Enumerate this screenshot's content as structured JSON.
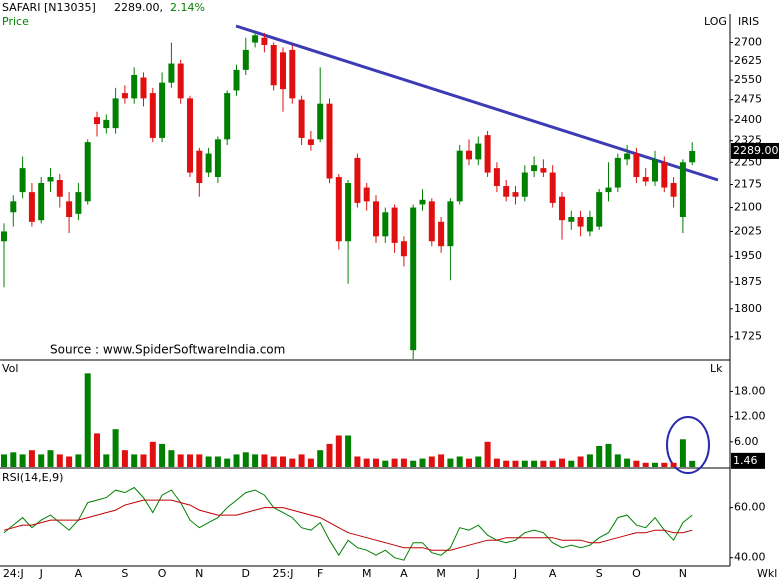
{
  "header": {
    "symbol": "SAFARI [N13035]",
    "last": "2289.00,",
    "change": "2.14%"
  },
  "x_axis_label": "Wkl",
  "chart_data": [
    {
      "type": "candlestick",
      "title": "Price",
      "scale": "log",
      "scale_label": "LOG",
      "indicator_label": "IRIS",
      "annotation": "Source : www.SpiderSoftwareIndia.com",
      "up_color": "#008000",
      "down_color": "#e01010",
      "last_label": "2289.00",
      "categories": [
        null,
        "24:J",
        null,
        null,
        "J",
        null,
        null,
        null,
        "A",
        null,
        null,
        null,
        null,
        "S",
        null,
        null,
        null,
        "O",
        null,
        null,
        null,
        "N",
        null,
        null,
        null,
        null,
        "D",
        null,
        null,
        null,
        "25:J",
        null,
        null,
        null,
        "F",
        null,
        null,
        null,
        null,
        "M",
        null,
        null,
        null,
        "A",
        null,
        null,
        null,
        "M",
        null,
        null,
        null,
        "J",
        null,
        null,
        null,
        "J",
        null,
        null,
        null,
        "A",
        null,
        null,
        null,
        null,
        "S",
        null,
        null,
        null,
        "O",
        null,
        null,
        null,
        null,
        "N",
        null
      ],
      "open": [
        1995,
        2085,
        2150,
        2150,
        2060,
        2185,
        2190,
        2120,
        2080,
        2120,
        2410,
        2370,
        2370,
        2500,
        2480,
        2560,
        2500,
        2335,
        2540,
        2615,
        2480,
        2290,
        2215,
        2200,
        2330,
        2510,
        2590,
        2700,
        2720,
        2690,
        2660,
        2670,
        2475,
        2330,
        2330,
        2460,
        2200,
        1995,
        2265,
        2165,
        2120,
        2010,
        2100,
        1995,
        1690,
        2110,
        2120,
        2055,
        1980,
        2120,
        2290,
        2260,
        2345,
        2230,
        2170,
        2150,
        2135,
        2220,
        2230,
        2215,
        2135,
        2055,
        2070,
        2025,
        2040,
        2150,
        2165,
        2260,
        2280,
        2200,
        2185,
        2250,
        2180,
        2070,
        2250
      ],
      "high": [
        2050,
        2140,
        2270,
        2180,
        2200,
        2230,
        2210,
        2150,
        2180,
        2330,
        2430,
        2420,
        2520,
        2530,
        2600,
        2580,
        2520,
        2580,
        2700,
        2630,
        2490,
        2300,
        2300,
        2340,
        2510,
        2610,
        2720,
        2750,
        2740,
        2700,
        2680,
        2690,
        2490,
        2360,
        2600,
        2480,
        2210,
        2190,
        2280,
        2180,
        2140,
        2100,
        2110,
        2010,
        2110,
        2160,
        2130,
        2070,
        2130,
        2310,
        2330,
        2340,
        2360,
        2250,
        2190,
        2170,
        2240,
        2270,
        2260,
        2240,
        2150,
        2090,
        2090,
        2090,
        2160,
        2250,
        2280,
        2310,
        2300,
        2230,
        2290,
        2270,
        2200,
        2260,
        2320
      ],
      "low": [
        1860,
        2040,
        2130,
        2040,
        2050,
        2150,
        2100,
        2020,
        2060,
        2110,
        2340,
        2350,
        2350,
        2460,
        2460,
        2450,
        2320,
        2320,
        2520,
        2460,
        2200,
        2135,
        2200,
        2180,
        2310,
        2490,
        2570,
        2680,
        2660,
        2510,
        2430,
        2460,
        2310,
        2290,
        2320,
        2180,
        1970,
        1870,
        2100,
        2090,
        1990,
        1990,
        1960,
        1920,
        1650,
        2090,
        1980,
        1960,
        1880,
        2110,
        2240,
        2240,
        2200,
        2150,
        2120,
        2110,
        2120,
        2200,
        2200,
        2100,
        2000,
        2030,
        2010,
        2010,
        2030,
        2120,
        2150,
        2240,
        2180,
        2170,
        2170,
        2150,
        2100,
        2020,
        2240
      ],
      "close": [
        2025,
        2120,
        2230,
        2055,
        2180,
        2200,
        2135,
        2070,
        2150,
        2320,
        2385,
        2400,
        2480,
        2480,
        2570,
        2480,
        2335,
        2540,
        2615,
        2480,
        2215,
        2180,
        2280,
        2330,
        2500,
        2590,
        2670,
        2730,
        2690,
        2530,
        2515,
        2480,
        2335,
        2310,
        2460,
        2195,
        1995,
        2180,
        2115,
        2120,
        2010,
        2085,
        1990,
        1950,
        2100,
        2125,
        1995,
        1980,
        2120,
        2290,
        2260,
        2315,
        2215,
        2170,
        2135,
        2135,
        2215,
        2240,
        2215,
        2115,
        2060,
        2070,
        2040,
        2070,
        2150,
        2165,
        2265,
        2280,
        2200,
        2185,
        2260,
        2165,
        2135,
        2250,
        2289
      ],
      "ylim": [
        1670,
        2820
      ],
      "yticks": [
        1725,
        1800,
        1875,
        1950,
        2025,
        2100,
        2175,
        2250,
        2325,
        2400,
        2475,
        2550,
        2625,
        2700
      ]
    },
    {
      "type": "bar",
      "title": "Vol",
      "unit": "Lk",
      "last_label": "1.46",
      "values": [
        3,
        3.5,
        3,
        4,
        3,
        4,
        3,
        2.5,
        3,
        22.3,
        8,
        3,
        9,
        4,
        3,
        3,
        6,
        5.5,
        4,
        3,
        3,
        3,
        2.5,
        2.5,
        2,
        3,
        3.5,
        3,
        3,
        2.5,
        2.5,
        2,
        3,
        2,
        4,
        5.5,
        7.5,
        7.5,
        2.5,
        2,
        2,
        1.5,
        2,
        2,
        1.5,
        2,
        2.5,
        3,
        2,
        2.5,
        2,
        2.5,
        6,
        2,
        1.5,
        1.5,
        1.5,
        1.5,
        1.5,
        1.5,
        2,
        1.5,
        2.5,
        3,
        5,
        5.5,
        3,
        2,
        1.5,
        1,
        1,
        1,
        1,
        6.6,
        1.46
      ],
      "ylim": [
        0,
        25
      ],
      "yticks": [
        {
          "value": 6,
          "label": "6.00"
        },
        {
          "value": 12,
          "label": "12.00"
        },
        {
          "value": 18,
          "label": "18.00"
        }
      ]
    },
    {
      "type": "line",
      "title": "RSI(14,E,9)",
      "series": [
        {
          "color": "#008000",
          "values": [
            50,
            53,
            56,
            52,
            55,
            57,
            54,
            51,
            55,
            62,
            63,
            64,
            67,
            66,
            68,
            64,
            58,
            65,
            67,
            62,
            55,
            52,
            54,
            56,
            60,
            63,
            66,
            67,
            65,
            60,
            58,
            56,
            52,
            51,
            54,
            47,
            41,
            47,
            44,
            43,
            41,
            43,
            40,
            39,
            46,
            46,
            42,
            41,
            44,
            52,
            51,
            53,
            49,
            47,
            46,
            47,
            50,
            51,
            50,
            46,
            44,
            45,
            44,
            45,
            48,
            50,
            56,
            57,
            53,
            52,
            56,
            51,
            47,
            54,
            57
          ]
        },
        {
          "color": "#c00000",
          "values": [
            51,
            52,
            53,
            53,
            54,
            55,
            55,
            55,
            55,
            56,
            57,
            58,
            59,
            61,
            62,
            63,
            63,
            63,
            63,
            62,
            61,
            59,
            58,
            57,
            57,
            57,
            58,
            59,
            60,
            60,
            60,
            59,
            58,
            57,
            56,
            54,
            52,
            50,
            49,
            48,
            47,
            46,
            45,
            44,
            44,
            44,
            43,
            43,
            43,
            44,
            45,
            46,
            47,
            47,
            48,
            48,
            48,
            48,
            48,
            48,
            47,
            47,
            47,
            46,
            46,
            47,
            48,
            49,
            50,
            50,
            51,
            51,
            50,
            50,
            51
          ]
        }
      ],
      "ylim": [
        36.7,
        75
      ],
      "yticks": [
        {
          "value": 40,
          "label": "40.00"
        },
        {
          "value": 60,
          "label": "60.00"
        }
      ]
    }
  ]
}
